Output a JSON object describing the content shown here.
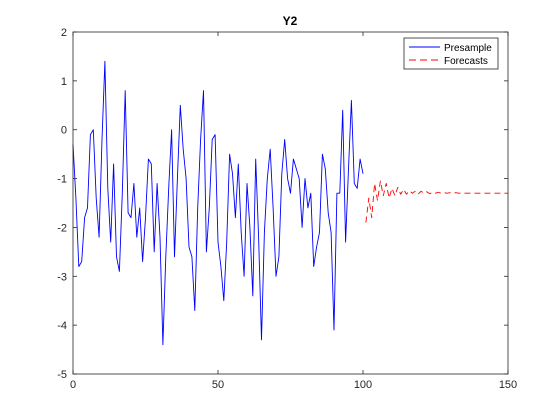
{
  "chart_data": {
    "type": "line",
    "title": "Y2",
    "xlabel": "",
    "ylabel": "",
    "xlim": [
      0,
      150
    ],
    "ylim": [
      -5,
      2
    ],
    "xticks": [
      0,
      50,
      100,
      150
    ],
    "yticks": [
      -5,
      -4,
      -3,
      -2,
      -1,
      0,
      1,
      2
    ],
    "grid": false,
    "legend_position": "top-right",
    "series": [
      {
        "name": "Presample",
        "color": "#0000ff",
        "style": "solid",
        "x": [
          0,
          1,
          2,
          3,
          4,
          5,
          6,
          7,
          8,
          9,
          10,
          11,
          12,
          13,
          14,
          15,
          16,
          17,
          18,
          19,
          20,
          21,
          22,
          23,
          24,
          25,
          26,
          27,
          28,
          29,
          30,
          31,
          32,
          33,
          34,
          35,
          36,
          37,
          38,
          39,
          40,
          41,
          42,
          43,
          44,
          45,
          46,
          47,
          48,
          49,
          50,
          51,
          52,
          53,
          54,
          55,
          56,
          57,
          58,
          59,
          60,
          61,
          62,
          63,
          64,
          65,
          66,
          67,
          68,
          69,
          70,
          71,
          72,
          73,
          74,
          75,
          76,
          77,
          78,
          79,
          80,
          81,
          82,
          83,
          84,
          85,
          86,
          87,
          88,
          89,
          90,
          91,
          92,
          93,
          94,
          95,
          96,
          97,
          98,
          99,
          100
        ],
        "y": [
          -0.3,
          -1.4,
          -2.8,
          -2.7,
          -1.8,
          -1.6,
          -0.1,
          0.0,
          -1.4,
          -2.2,
          -0.2,
          1.4,
          -1.2,
          -2.3,
          -0.7,
          -2.6,
          -2.9,
          -1.3,
          0.8,
          -1.7,
          -1.8,
          -1.1,
          -2.2,
          -1.6,
          -2.7,
          -1.8,
          -0.6,
          -0.7,
          -2.5,
          -1.1,
          -2.2,
          -4.4,
          -2.6,
          -1.2,
          0.0,
          -2.6,
          -1.0,
          0.5,
          -0.4,
          -1.0,
          -2.4,
          -2.6,
          -3.7,
          -1.6,
          -0.2,
          0.8,
          -2.5,
          -1.6,
          -0.2,
          -0.1,
          -2.3,
          -2.8,
          -3.5,
          -2.3,
          -0.5,
          -0.9,
          -1.8,
          -0.7,
          -2.1,
          -3.0,
          -1.1,
          -2.0,
          -3.4,
          -0.6,
          -2.2,
          -4.3,
          -2.1,
          -1.0,
          -0.4,
          -1.6,
          -3.0,
          -2.6,
          -0.9,
          -0.2,
          -1.0,
          -1.3,
          -0.6,
          -0.8,
          -1.0,
          -2.0,
          -1.0,
          -1.6,
          -1.3,
          -2.8,
          -2.4,
          -2.1,
          -0.5,
          -0.8,
          -1.7,
          -2.1,
          -4.1,
          -1.3,
          -1.3,
          0.4,
          -2.3,
          -0.8,
          0.6,
          -1.1,
          -1.2,
          -0.6,
          -0.9
        ]
      },
      {
        "name": "Forecasts",
        "color": "#ff0000",
        "style": "dashed",
        "x": [
          101,
          102,
          103,
          104,
          105,
          106,
          107,
          108,
          109,
          110,
          111,
          112,
          113,
          114,
          115,
          116,
          117,
          118,
          119,
          120,
          121,
          122,
          123,
          124,
          125,
          126,
          127,
          128,
          129,
          130,
          131,
          132,
          133,
          134,
          135,
          136,
          137,
          138,
          139,
          140,
          141,
          142,
          143,
          144,
          145,
          146,
          147,
          148,
          149,
          150
        ],
        "y": [
          -1.9,
          -1.4,
          -1.8,
          -1.1,
          -1.45,
          -1.05,
          -1.35,
          -1.1,
          -1.4,
          -1.2,
          -1.35,
          -1.18,
          -1.32,
          -1.22,
          -1.32,
          -1.25,
          -1.3,
          -1.26,
          -1.32,
          -1.26,
          -1.3,
          -1.27,
          -1.31,
          -1.28,
          -1.3,
          -1.28,
          -1.3,
          -1.29,
          -1.3,
          -1.29,
          -1.3,
          -1.29,
          -1.3,
          -1.3,
          -1.3,
          -1.3,
          -1.3,
          -1.3,
          -1.3,
          -1.3,
          -1.3,
          -1.3,
          -1.3,
          -1.3,
          -1.3,
          -1.3,
          -1.3,
          -1.3,
          -1.3,
          -1.3
        ]
      }
    ]
  }
}
